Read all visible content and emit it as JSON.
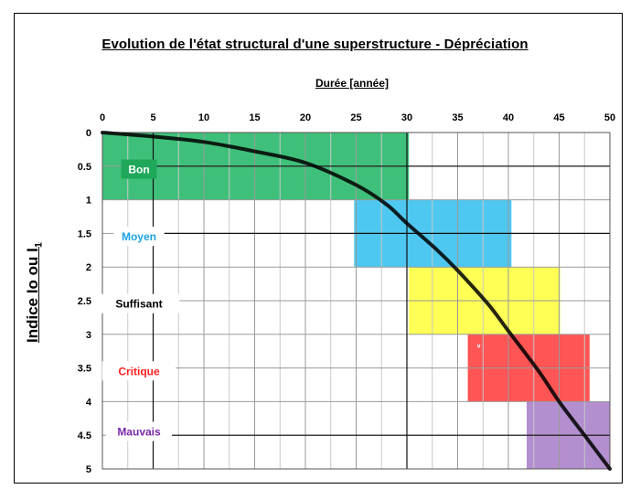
{
  "chart_data": {
    "type": "line",
    "title": "Evolution de l'état structural d'une superstructure - Dépréciation",
    "xlabel": "Durée [année]",
    "ylabel_main": "Indice Io ou I",
    "ylabel_sub": "1",
    "xlim": [
      0,
      50
    ],
    "ylim": [
      0,
      5
    ],
    "x_ticks": [
      "0",
      "5",
      "10",
      "15",
      "20",
      "25",
      "30",
      "35",
      "40",
      "45",
      "50"
    ],
    "y_ticks": [
      "0",
      "0.5",
      "1",
      "1.5",
      "2",
      "2.5",
      "3",
      "3.5",
      "4",
      "4.5",
      "5"
    ],
    "grid": true,
    "x_axis_position": "top",
    "y_axis_inverted": true,
    "series": [
      {
        "color": "#000000",
        "x": [
          0,
          5,
          10,
          15,
          20,
          25,
          28,
          30,
          33,
          35,
          38,
          40,
          43,
          45,
          47.5,
          50
        ],
        "y": [
          0,
          0.06,
          0.14,
          0.28,
          0.45,
          0.78,
          1.07,
          1.35,
          1.75,
          2.05,
          2.55,
          2.95,
          3.55,
          4.0,
          4.5,
          5.0
        ]
      }
    ],
    "zones": [
      {
        "label": "Bon",
        "color": "#3fc07a",
        "label_color": "#ffffff",
        "label_bg": "#1fa85a",
        "x0": 0,
        "x1": 30.2,
        "y0": 0,
        "y1": 1
      },
      {
        "label": "Moyen",
        "color": "#4ec8f0",
        "label_color": "#1aa3e0",
        "label_bg": "#ffffff",
        "x0": 24.8,
        "x1": 40.3,
        "y0": 1,
        "y1": 2
      },
      {
        "label": "Suffisant",
        "color": "#ffff55",
        "label_color": "#000000",
        "label_bg": "#ffffff",
        "x0": 30.2,
        "x1": 45.1,
        "y0": 2,
        "y1": 3
      },
      {
        "label": "Critique",
        "color": "#ff5555",
        "label_color": "#ff2020",
        "label_bg": "#ffffff",
        "x0": 36,
        "x1": 48,
        "y0": 3,
        "y1": 4
      },
      {
        "label": "Mauvais",
        "color": "#b38fcf",
        "label_color": "#7a2aa8",
        "label_bg": "#ffffff",
        "x0": 41.8,
        "x1": 50,
        "y0": 4,
        "y1": 5
      }
    ],
    "annotations": [
      "v"
    ]
  }
}
